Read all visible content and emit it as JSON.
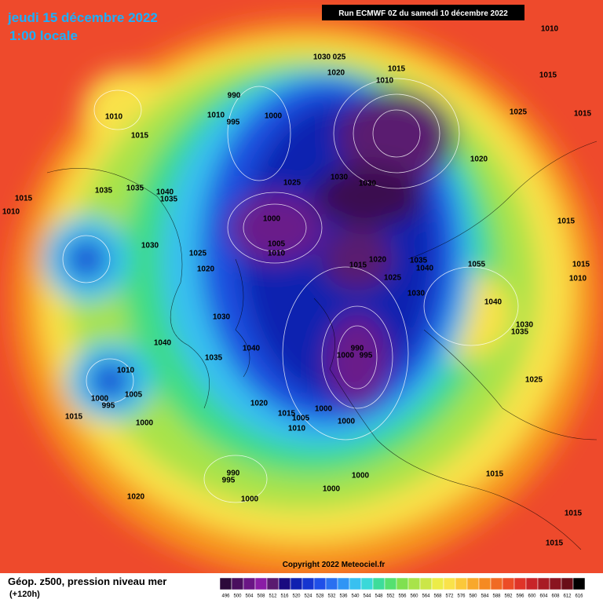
{
  "header": {
    "title": "jeudi 15 décembre 2022",
    "subtitle": "1:00 locale",
    "run": "Run ECMWF 0Z du samedi 10 décembre 2022"
  },
  "copyright": "Copyright 2022 Meteociel.fr",
  "legend": {
    "title": "Géop. z500, pression niveau mer",
    "lead": "(+120h)",
    "values": [
      496,
      500,
      504,
      508,
      512,
      516,
      520,
      524,
      528,
      532,
      536,
      540,
      544,
      548,
      552,
      556,
      560,
      564,
      568,
      572,
      576,
      580,
      584,
      588,
      592,
      596,
      600,
      604,
      608,
      612,
      616
    ],
    "colors": [
      "#2c0a3a",
      "#4a0f5e",
      "#6a1585",
      "#8a1ca6",
      "#5a1a70",
      "#1a0a80",
      "#1020b0",
      "#1535d0",
      "#1f4fe8",
      "#2a70f0",
      "#2f95f5",
      "#38c0f0",
      "#3ad8d8",
      "#3ddc9a",
      "#55e070",
      "#80e050",
      "#a8e34a",
      "#cbe648",
      "#ecec48",
      "#f9e24a",
      "#fbc83a",
      "#f8a82c",
      "#f58a22",
      "#f06a24",
      "#ec4c26",
      "#e03428",
      "#c82428",
      "#a81c24",
      "#8a1420",
      "#6a0e18",
      "#000000"
    ]
  },
  "isobar_labels": [
    "1010",
    "1015",
    "1015",
    "1030",
    "025",
    "1020",
    "1010",
    "990",
    "1000",
    "1010",
    "995",
    "1010",
    "1015",
    "1025",
    "1015",
    "1020",
    "1025",
    "1030",
    "1030",
    "1035",
    "1035",
    "1040",
    "1035",
    "1015",
    "1010",
    "1000",
    "1005",
    "1010",
    "1025",
    "1030",
    "1020",
    "1015",
    "1020",
    "1035",
    "1040",
    "1055",
    "1025",
    "1030",
    "1030",
    "1040",
    "1035",
    "1040",
    "990",
    "995",
    "1000",
    "1010",
    "1005",
    "1000",
    "995",
    "1015",
    "1000",
    "1020",
    "1015",
    "1005",
    "1010",
    "1000",
    "1000",
    "990",
    "995",
    "1000",
    "1020",
    "1000",
    "1000",
    "1015",
    "1015",
    "1015",
    "1030",
    "1035",
    "1025",
    "1040",
    "1015",
    "1010",
    "1015"
  ]
}
